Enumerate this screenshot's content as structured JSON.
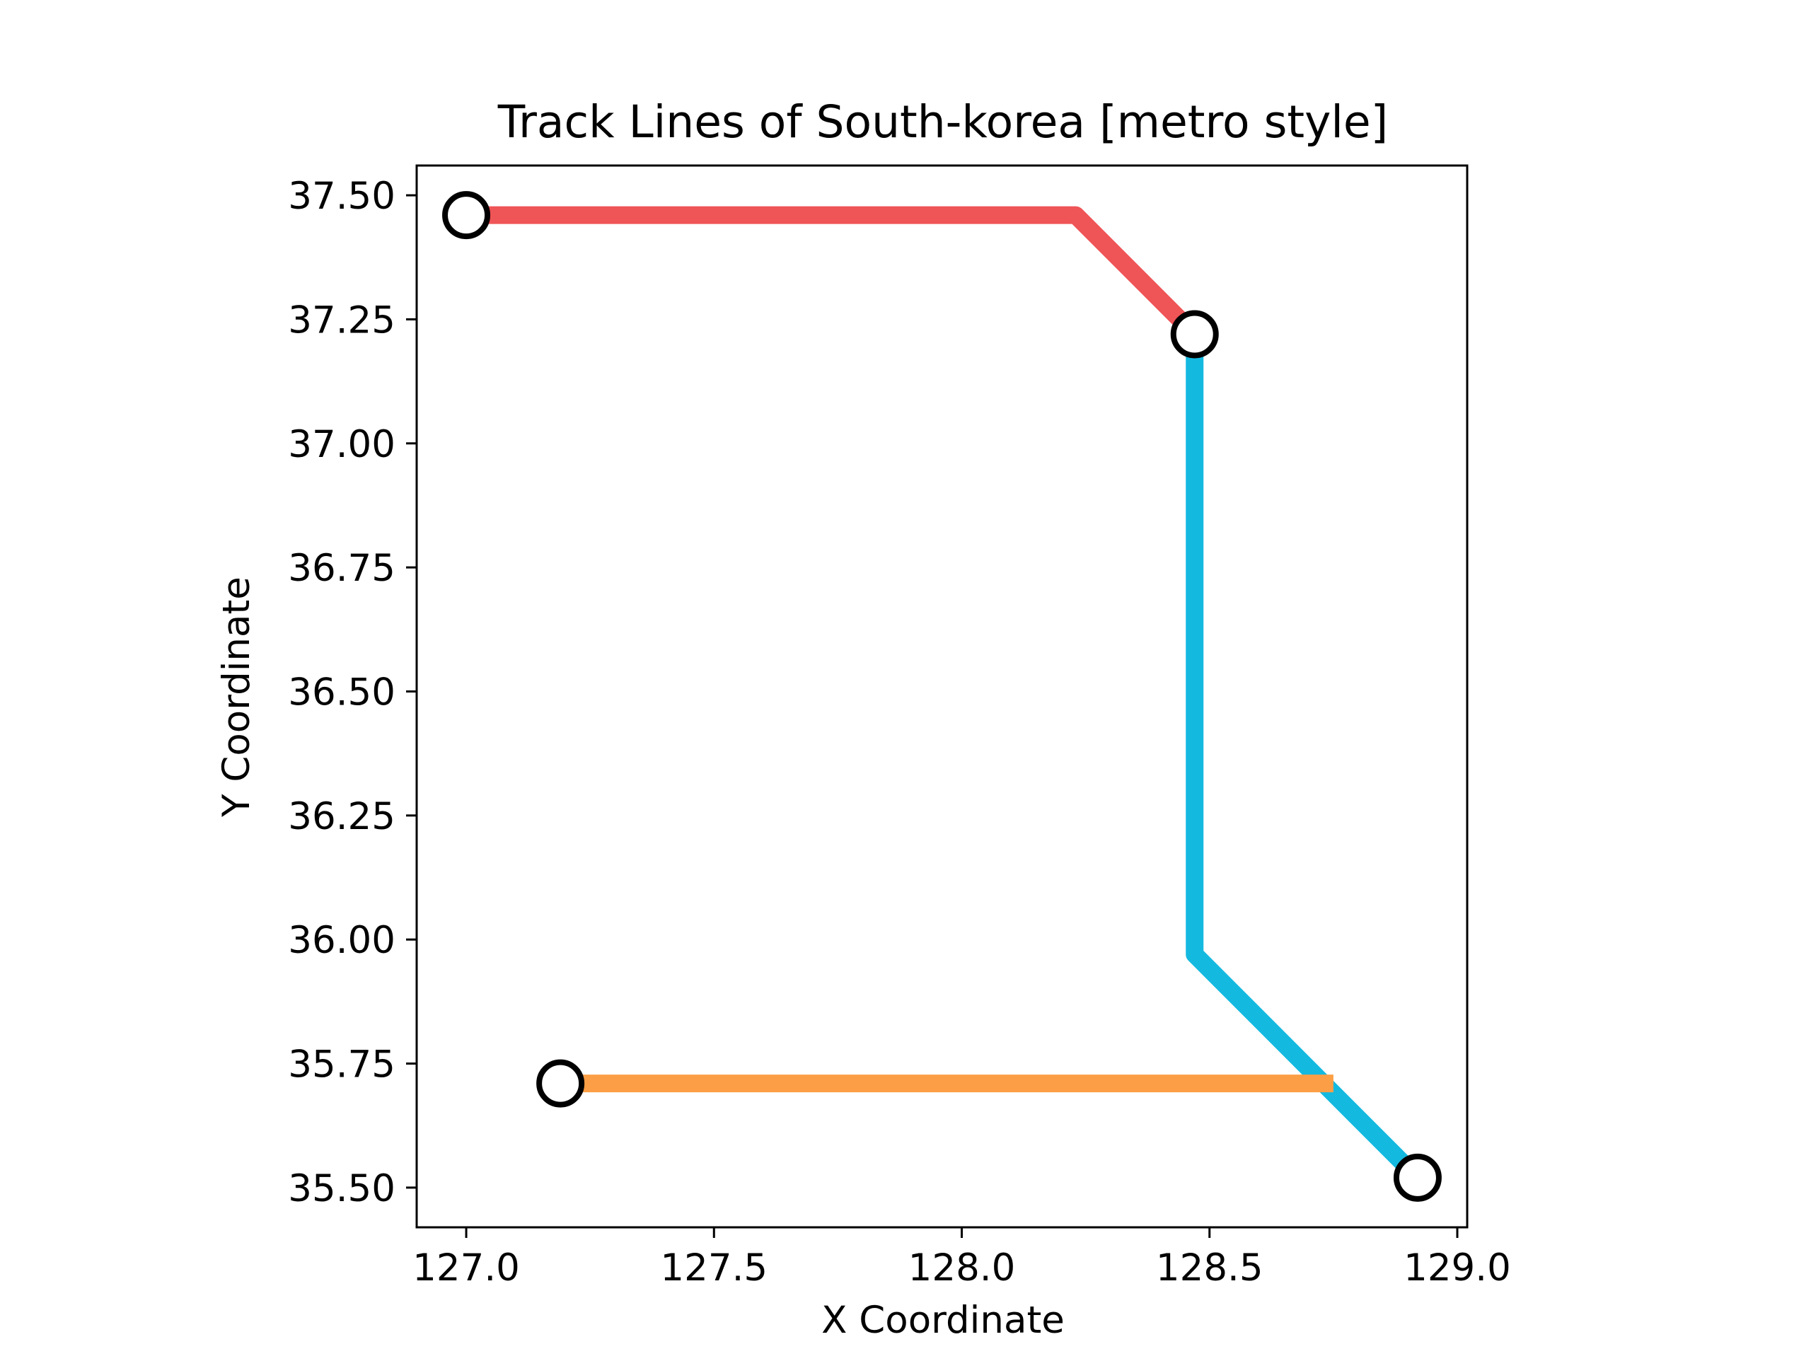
{
  "chart_data": {
    "type": "line",
    "title": "Track Lines of South-korea [metro style]",
    "xlabel": "X Coordinate",
    "ylabel": "Y Coordinate",
    "xlim": [
      126.9,
      129.02
    ],
    "ylim": [
      35.42,
      37.56
    ],
    "x_ticks": [
      "127.0",
      "127.5",
      "128.0",
      "128.5",
      "129.0"
    ],
    "y_ticks": [
      "35.50",
      "35.75",
      "36.00",
      "36.25",
      "36.50",
      "36.75",
      "37.00",
      "37.25",
      "37.50"
    ],
    "grid": false,
    "legend": false,
    "series": [
      {
        "color": "#ef5456",
        "points": [
          [
            127.0,
            37.46
          ],
          [
            128.23,
            37.46
          ],
          [
            128.47,
            37.22
          ]
        ]
      },
      {
        "color": "#14b9e0",
        "points": [
          [
            128.47,
            37.22
          ],
          [
            128.47,
            35.97
          ],
          [
            128.92,
            35.52
          ]
        ]
      },
      {
        "color": "#fc9e45",
        "points": [
          [
            127.19,
            35.71
          ],
          [
            128.75,
            35.71
          ]
        ]
      }
    ],
    "stations": [
      [
        127.0,
        37.46
      ],
      [
        128.47,
        37.22
      ],
      [
        127.19,
        35.71
      ],
      [
        128.92,
        35.52
      ]
    ]
  }
}
